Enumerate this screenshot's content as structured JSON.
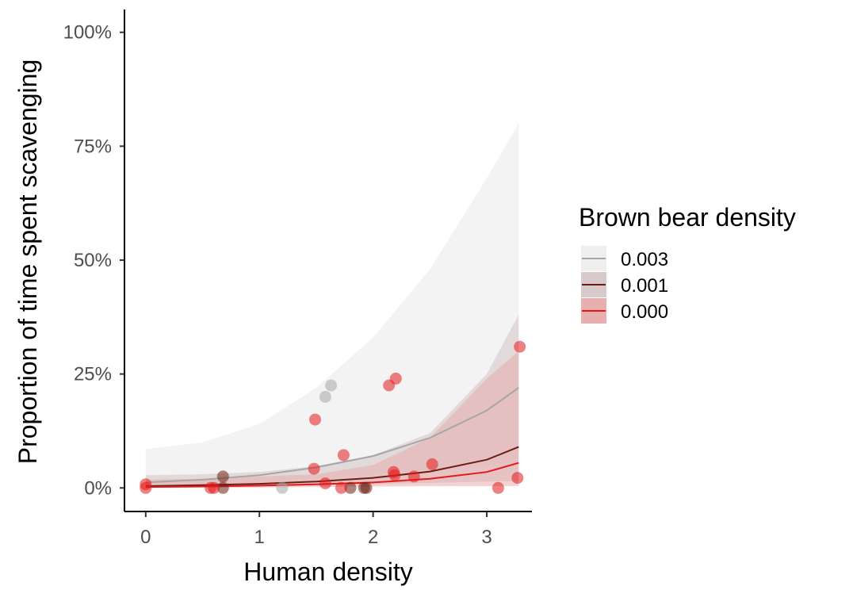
{
  "chart_data": {
    "type": "scatter",
    "title": "",
    "xlabel": "Human density",
    "ylabel": "Proportion of time spent scavenging",
    "xlim": [
      -0.18,
      3.39
    ],
    "ylim": [
      -0.05,
      1.05
    ],
    "x_ticks": [
      0,
      1,
      2,
      3
    ],
    "x_tick_labels": [
      "0",
      "1",
      "2",
      "3"
    ],
    "y_ticks": [
      0,
      0.25,
      0.5,
      0.75,
      1.0
    ],
    "y_tick_labels": [
      "0%",
      "25%",
      "50%",
      "75%",
      "100%"
    ],
    "grid": false,
    "legend": {
      "title": "Brown bear density",
      "position": "right"
    },
    "series": [
      {
        "name": "0.003",
        "color": "#a6a6a6",
        "fill": "#ececec",
        "fill_opacity": 0.65,
        "line": {
          "x": [
            0,
            0.5,
            1.0,
            1.5,
            2.0,
            2.5,
            3.0,
            3.28
          ],
          "y": [
            0.012,
            0.018,
            0.028,
            0.045,
            0.07,
            0.11,
            0.17,
            0.22
          ]
        },
        "ribbon": {
          "x": [
            0,
            0.5,
            1.0,
            1.5,
            2.0,
            2.5,
            3.0,
            3.28
          ],
          "lower": [
            0.003,
            0.006,
            0.012,
            0.02,
            0.03,
            0.04,
            0.05,
            0.05
          ],
          "upper": [
            0.085,
            0.1,
            0.14,
            0.22,
            0.33,
            0.48,
            0.68,
            0.8
          ]
        },
        "points": {
          "x": [
            1.2,
            1.58,
            1.63
          ],
          "y": [
            0.0,
            0.2,
            0.225
          ]
        }
      },
      {
        "name": "0.001",
        "color": "#6b1f14",
        "fill": "#d4c4c4",
        "fill_opacity": 0.55,
        "line": {
          "x": [
            0,
            0.5,
            1.0,
            1.5,
            2.0,
            2.5,
            3.0,
            3.28
          ],
          "y": [
            0.004,
            0.006,
            0.009,
            0.014,
            0.022,
            0.036,
            0.062,
            0.09
          ]
        },
        "ribbon": {
          "x": [
            0,
            0.5,
            1.0,
            1.5,
            2.0,
            2.5,
            3.0,
            3.28
          ],
          "lower": [
            0.001,
            0.002,
            0.003,
            0.005,
            0.008,
            0.011,
            0.014,
            0.015
          ],
          "upper": [
            0.028,
            0.03,
            0.035,
            0.048,
            0.072,
            0.12,
            0.25,
            0.38
          ]
        },
        "points": {
          "x": [
            0.68,
            0.68,
            1.8,
            1.92,
            1.94
          ],
          "y": [
            0.025,
            0.0,
            0.0,
            0.0,
            0.0
          ]
        }
      },
      {
        "name": "0.000",
        "color": "#e3191c",
        "fill": "#e6a6a6",
        "fill_opacity": 0.5,
        "line": {
          "x": [
            0,
            0.5,
            1.0,
            1.5,
            2.0,
            2.5,
            3.0,
            3.28
          ],
          "y": [
            0.002,
            0.003,
            0.005,
            0.008,
            0.012,
            0.02,
            0.035,
            0.055
          ]
        },
        "ribbon": {
          "x": [
            0,
            0.5,
            1.0,
            1.5,
            2.0,
            2.5,
            3.0,
            3.28
          ],
          "lower": [
            0.0005,
            0.001,
            0.001,
            0.002,
            0.003,
            0.004,
            0.004,
            0.004
          ],
          "upper": [
            0.018,
            0.02,
            0.025,
            0.03,
            0.05,
            0.11,
            0.24,
            0.3
          ]
        },
        "points": {
          "x": [
            0,
            0,
            0.57,
            0.6,
            1.48,
            1.49,
            1.58,
            1.72,
            1.74,
            2.14,
            2.18,
            2.19,
            2.2,
            2.36,
            2.52,
            3.1,
            3.27,
            3.29
          ],
          "y": [
            0.008,
            0.0,
            0.0,
            0.0,
            0.042,
            0.15,
            0.01,
            0.0,
            0.072,
            0.225,
            0.035,
            0.028,
            0.24,
            0.025,
            0.052,
            0.0,
            0.022,
            0.31
          ]
        }
      }
    ]
  }
}
